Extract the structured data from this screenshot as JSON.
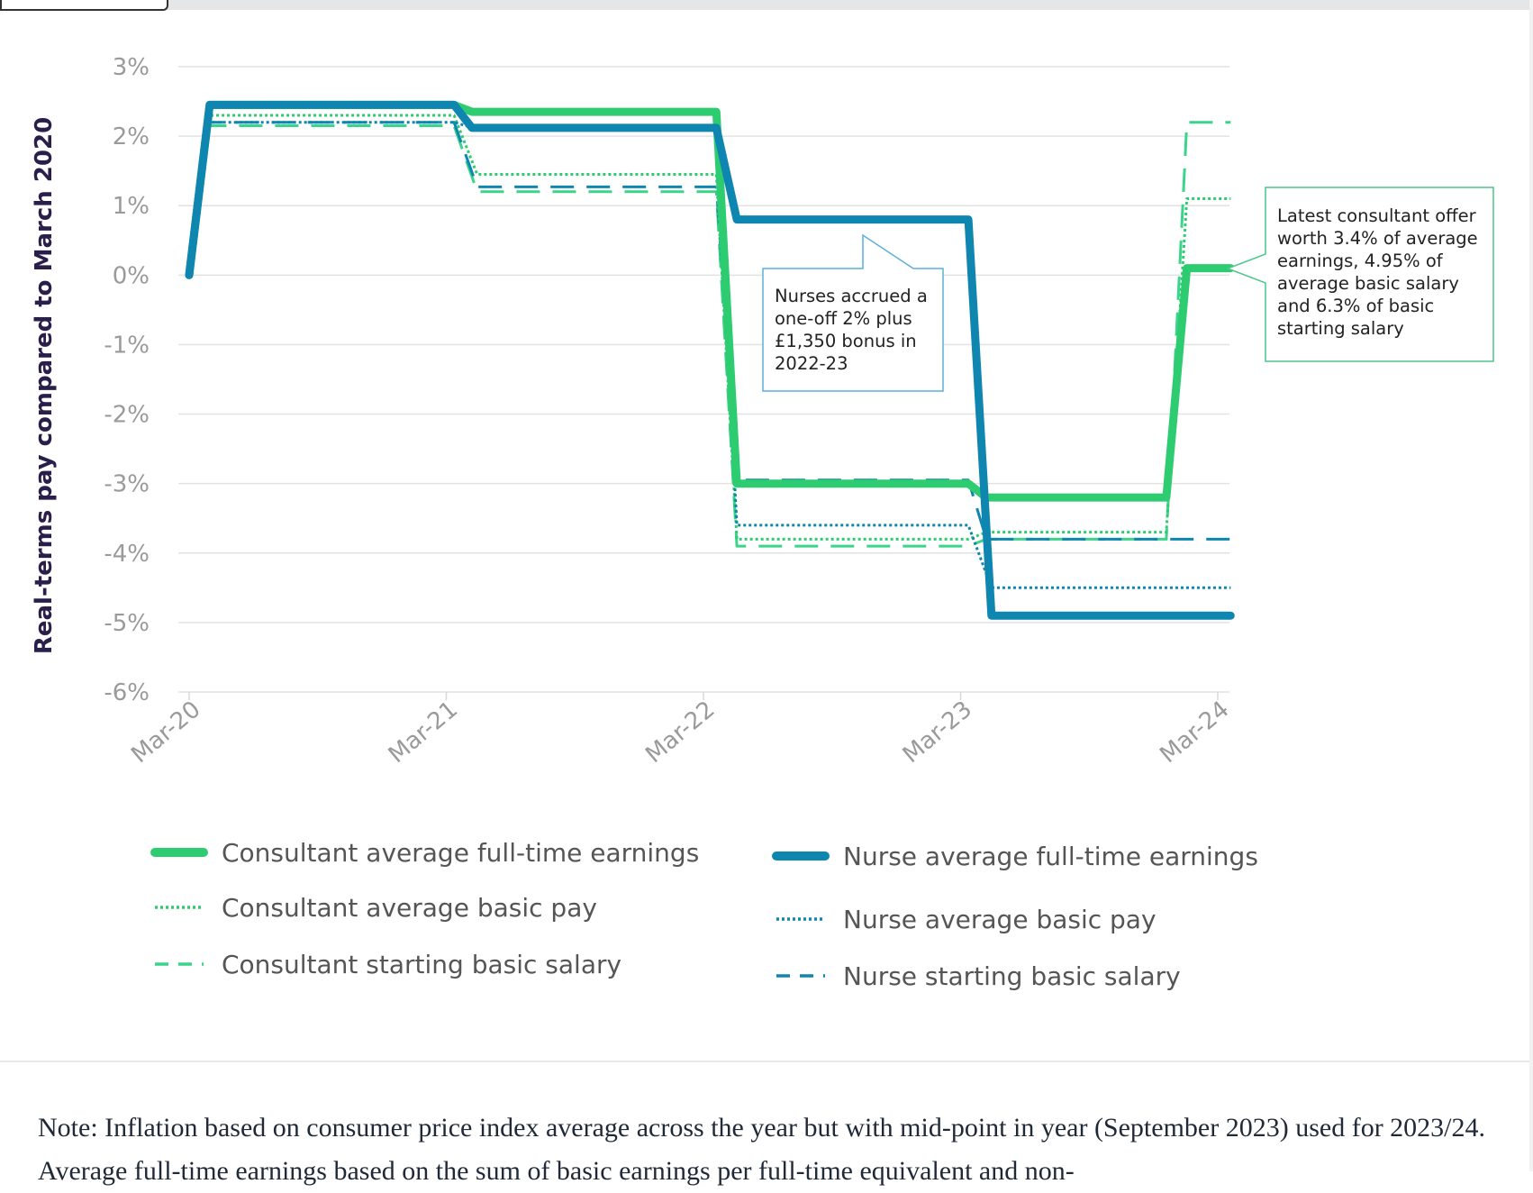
{
  "chart_data": {
    "type": "line",
    "ylabel": "Real-terms pay compared to March 2020",
    "xlabel": "",
    "ylim": [
      -6,
      3
    ],
    "yticks": [
      "3%",
      "2%",
      "1%",
      "0%",
      "-1%",
      "-2%",
      "-3%",
      "-4%",
      "-5%",
      "-6%"
    ],
    "ytick_values": [
      3,
      2,
      1,
      0,
      -1,
      -2,
      -3,
      -4,
      -5,
      -6
    ],
    "xticks": [
      "Mar-20",
      "Mar-21",
      "Mar-22",
      "Mar-23",
      "Mar-24"
    ],
    "grid": true,
    "series": [
      {
        "name": "Consultant average full-time earnings",
        "color": "#2ecc71",
        "style": "solid",
        "points": [
          [
            0,
            0
          ],
          [
            0.08,
            2.45
          ],
          [
            1.03,
            2.45
          ],
          [
            1.1,
            2.35
          ],
          [
            2.05,
            2.35
          ],
          [
            2.13,
            -3.0
          ],
          [
            3.03,
            -3.0
          ],
          [
            3.1,
            -3.2
          ],
          [
            3.8,
            -3.2
          ],
          [
            3.88,
            0.1
          ],
          [
            4.05,
            0.1
          ]
        ]
      },
      {
        "name": "Consultant average basic pay",
        "color": "#2ecc71",
        "style": "dotted",
        "points": [
          [
            0,
            0
          ],
          [
            0.08,
            2.3
          ],
          [
            1.03,
            2.3
          ],
          [
            1.12,
            1.45
          ],
          [
            2.05,
            1.45
          ],
          [
            2.13,
            -3.8
          ],
          [
            3.03,
            -3.8
          ],
          [
            3.1,
            -3.7
          ],
          [
            3.8,
            -3.7
          ],
          [
            3.88,
            1.1
          ],
          [
            4.05,
            1.1
          ]
        ]
      },
      {
        "name": "Consultant starting basic salary",
        "color": "#3ad48a",
        "style": "dashed",
        "points": [
          [
            0,
            0
          ],
          [
            0.08,
            2.15
          ],
          [
            1.03,
            2.15
          ],
          [
            1.12,
            1.2
          ],
          [
            2.05,
            1.2
          ],
          [
            2.13,
            -3.9
          ],
          [
            3.03,
            -3.9
          ],
          [
            3.1,
            -3.8
          ],
          [
            3.8,
            -3.8
          ],
          [
            3.88,
            2.2
          ],
          [
            4.05,
            2.2
          ]
        ]
      },
      {
        "name": "Nurse average full-time earnings",
        "color": "#0e86b0",
        "style": "solid",
        "points": [
          [
            0,
            0
          ],
          [
            0.08,
            2.45
          ],
          [
            1.03,
            2.45
          ],
          [
            1.1,
            2.12
          ],
          [
            2.05,
            2.12
          ],
          [
            2.13,
            0.8
          ],
          [
            3.03,
            0.8
          ],
          [
            3.12,
            -4.9
          ],
          [
            4.05,
            -4.9
          ]
        ]
      },
      {
        "name": "Nurse average basic pay",
        "color": "#0e86b0",
        "style": "dotted",
        "points": [
          [
            0,
            0
          ],
          [
            0.08,
            2.2
          ],
          [
            1.03,
            2.2
          ],
          [
            1.12,
            2.1
          ],
          [
            2.05,
            2.1
          ],
          [
            2.13,
            -3.6
          ],
          [
            3.03,
            -3.6
          ],
          [
            3.12,
            -4.5
          ],
          [
            4.05,
            -4.5
          ]
        ]
      },
      {
        "name": "Nurse starting basic salary",
        "color": "#0e86b0",
        "style": "dashed",
        "points": [
          [
            0,
            0
          ],
          [
            0.08,
            2.2
          ],
          [
            1.03,
            2.2
          ],
          [
            1.12,
            1.27
          ],
          [
            2.05,
            1.27
          ],
          [
            2.13,
            -2.95
          ],
          [
            3.03,
            -2.95
          ],
          [
            3.1,
            -3.8
          ],
          [
            4.05,
            -3.8
          ]
        ]
      }
    ],
    "annotations": [
      {
        "lines": [
          "Nurses accrued a",
          "one-off 2% plus",
          "£1,350 bonus in",
          "2022-23"
        ],
        "color": "#5ab0d8"
      },
      {
        "lines": [
          "Latest consultant offer",
          "worth 3.4% of average",
          "earnings, 4.95% of",
          "average basic salary",
          "and 6.3% of basic",
          "starting salary"
        ],
        "color": "#4cc68a"
      }
    ]
  },
  "note": "Note: Inflation based on consumer price index average across the year but with mid-point in year (September 2023) used for 2023/24. Average full-time earnings based on the sum of basic earnings per full-time equivalent and non-"
}
